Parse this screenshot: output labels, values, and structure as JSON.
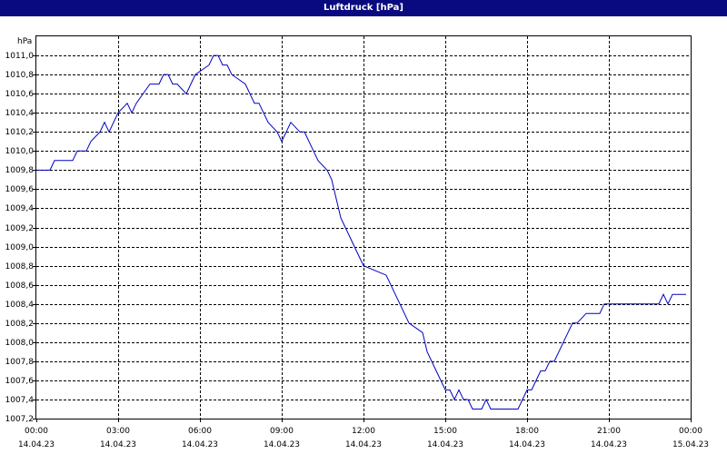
{
  "window": {
    "title": "Luftdruck [hPa]"
  },
  "colors": {
    "title_bar": "#0a0a80",
    "line": "#0000c0",
    "grid": "#000000"
  },
  "chart_data": {
    "type": "line",
    "title": "Luftdruck [hPa]",
    "ylabel": "hPa",
    "xlabel": "",
    "ylim": [
      1007.2,
      1011.2
    ],
    "xlim": [
      "14.04.23 00:00",
      "15.04.23 00:00"
    ],
    "grid": true,
    "y_ticks": [
      "1007,2",
      "1007,4",
      "1007,6",
      "1007,8",
      "1008,0",
      "1008,2",
      "1008,4",
      "1008,6",
      "1008,8",
      "1009,0",
      "1009,2",
      "1009,4",
      "1009,6",
      "1009,8",
      "1010,0",
      "1010,2",
      "1010,4",
      "1010,6",
      "1010,8",
      "1011,0"
    ],
    "x_ticks": [
      {
        "time": "00:00",
        "date": "14.04.23"
      },
      {
        "time": "03:00",
        "date": "14.04.23"
      },
      {
        "time": "06:00",
        "date": "14.04.23"
      },
      {
        "time": "09:00",
        "date": "14.04.23"
      },
      {
        "time": "12:00",
        "date": "14.04.23"
      },
      {
        "time": "15:00",
        "date": "14.04.23"
      },
      {
        "time": "18:00",
        "date": "14.04.23"
      },
      {
        "time": "21:00",
        "date": "14.04.23"
      },
      {
        "time": "00:00",
        "date": "15.04.23"
      }
    ],
    "series": [
      {
        "x": [
          "00:00",
          "00:30",
          "00:40",
          "01:20",
          "01:30",
          "01:50",
          "02:00",
          "02:20",
          "02:30",
          "02:40",
          "02:50",
          "03:00",
          "03:20",
          "03:30",
          "03:40",
          "04:10",
          "04:30",
          "04:40",
          "04:50",
          "05:00",
          "05:10",
          "05:30",
          "05:40",
          "05:50",
          "06:20",
          "06:30",
          "06:40",
          "06:50",
          "07:00",
          "07:10",
          "07:40",
          "07:50",
          "08:00",
          "08:10",
          "08:20",
          "08:30",
          "08:50",
          "09:00",
          "09:10",
          "09:20",
          "09:40",
          "09:50",
          "10:10",
          "10:20",
          "10:40",
          "10:50",
          "11:00",
          "11:10",
          "11:20",
          "11:30",
          "11:40",
          "11:50",
          "12:00",
          "12:50",
          "13:00",
          "13:10",
          "13:20",
          "13:30",
          "13:40",
          "14:10",
          "14:20",
          "14:30",
          "14:40",
          "14:50",
          "15:00",
          "15:10",
          "15:20",
          "15:30",
          "15:40",
          "15:50",
          "16:00",
          "16:10",
          "16:20",
          "16:30",
          "16:40",
          "16:50",
          "17:10",
          "17:20",
          "17:40",
          "17:50",
          "18:00",
          "18:10",
          "18:20",
          "18:30",
          "18:40",
          "18:50",
          "19:00",
          "19:10",
          "19:20",
          "19:30",
          "19:40",
          "19:50",
          "20:10",
          "20:20",
          "20:30",
          "20:40",
          "20:50",
          "21:00",
          "21:10",
          "21:20",
          "21:30",
          "21:40",
          "21:50",
          "22:00",
          "22:10",
          "22:20",
          "22:30",
          "22:40",
          "22:50",
          "23:00",
          "23:10",
          "23:20",
          "23:30",
          "23:40",
          "23:50"
        ],
        "values": [
          1009.8,
          1009.8,
          1009.9,
          1009.9,
          1010.0,
          1010.0,
          1010.1,
          1010.2,
          1010.3,
          1010.2,
          1010.3,
          1010.4,
          1010.5,
          1010.4,
          1010.5,
          1010.7,
          1010.7,
          1010.8,
          1010.8,
          1010.7,
          1010.7,
          1010.6,
          1010.7,
          1010.8,
          1010.9,
          1011.0,
          1011.0,
          1010.9,
          1010.9,
          1010.8,
          1010.7,
          1010.6,
          1010.5,
          1010.5,
          1010.4,
          1010.3,
          1010.2,
          1010.1,
          1010.2,
          1010.3,
          1010.2,
          1010.2,
          1010.0,
          1009.9,
          1009.8,
          1009.7,
          1009.5,
          1009.3,
          1009.2,
          1009.1,
          1009.0,
          1008.9,
          1008.8,
          1008.7,
          1008.6,
          1008.5,
          1008.4,
          1008.3,
          1008.2,
          1008.1,
          1007.9,
          1007.8,
          1007.7,
          1007.6,
          1007.5,
          1007.5,
          1007.4,
          1007.5,
          1007.4,
          1007.4,
          1007.3,
          1007.3,
          1007.3,
          1007.4,
          1007.3,
          1007.3,
          1007.3,
          1007.3,
          1007.3,
          1007.4,
          1007.5,
          1007.5,
          1007.6,
          1007.7,
          1007.7,
          1007.8,
          1007.8,
          1007.9,
          1008.0,
          1008.1,
          1008.2,
          1008.2,
          1008.3,
          1008.3,
          1008.3,
          1008.3,
          1008.4,
          1008.4,
          1008.4,
          1008.4,
          1008.4,
          1008.4,
          1008.4,
          1008.4,
          1008.4,
          1008.4,
          1008.4,
          1008.4,
          1008.4,
          1008.5,
          1008.4,
          1008.5,
          1008.5,
          1008.5,
          1008.5
        ]
      }
    ]
  }
}
